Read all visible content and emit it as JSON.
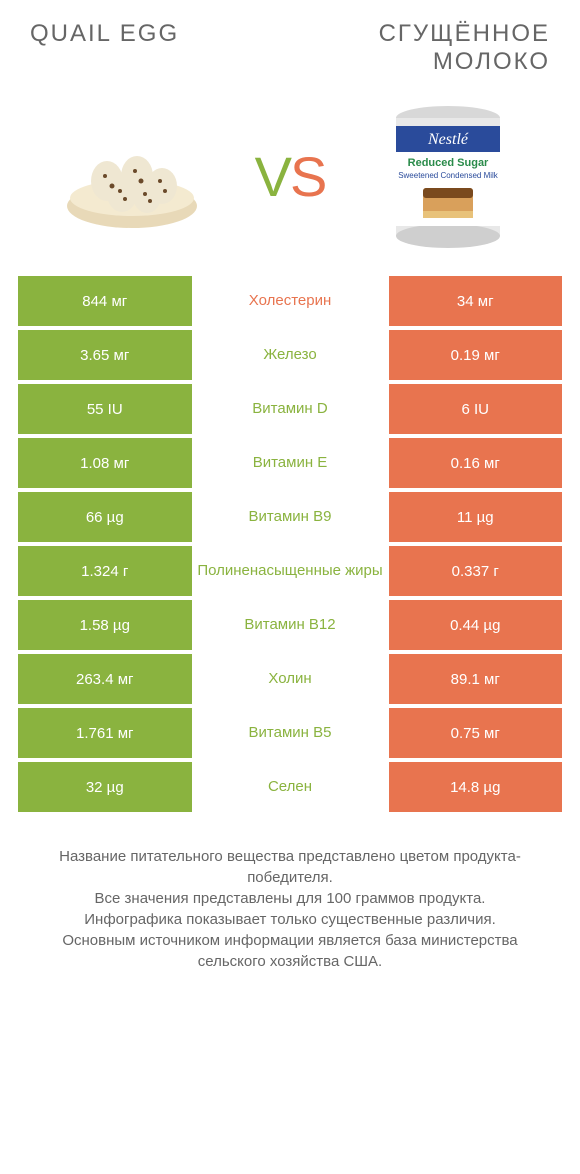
{
  "colors": {
    "green": "#8ab33f",
    "orange": "#e8744f",
    "text": "#666666",
    "white": "#ffffff"
  },
  "header": {
    "left_title": "QUAIL EGG",
    "right_title": "СГУЩЁННОЕ МОЛОКО"
  },
  "vs": {
    "v": "V",
    "s": "S"
  },
  "rows": [
    {
      "left": "844 мг",
      "label": "Холестерин",
      "right": "34 мг",
      "label_color": "orange"
    },
    {
      "left": "3.65 мг",
      "label": "Железо",
      "right": "0.19 мг",
      "label_color": "green"
    },
    {
      "left": "55 IU",
      "label": "Витамин D",
      "right": "6 IU",
      "label_color": "green"
    },
    {
      "left": "1.08 мг",
      "label": "Витамин E",
      "right": "0.16 мг",
      "label_color": "green"
    },
    {
      "left": "66 µg",
      "label": "Витамин B9",
      "right": "11 µg",
      "label_color": "green"
    },
    {
      "left": "1.324 г",
      "label": "Полиненасыщенные жиры",
      "right": "0.337 г",
      "label_color": "green"
    },
    {
      "left": "1.58 µg",
      "label": "Витамин B12",
      "right": "0.44 µg",
      "label_color": "green"
    },
    {
      "left": "263.4 мг",
      "label": "Холин",
      "right": "89.1 мг",
      "label_color": "green"
    },
    {
      "left": "1.761 мг",
      "label": "Витамин B5",
      "right": "0.75 мг",
      "label_color": "green"
    },
    {
      "left": "32 µg",
      "label": "Селен",
      "right": "14.8 µg",
      "label_color": "green"
    }
  ],
  "footer": {
    "line1": "Название питательного вещества представлено цветом продукта-победителя.",
    "line2": "Все значения представлены для 100 граммов продукта.",
    "line3": "Инфографика показывает только существенные различия.",
    "line4": "Основным источником информации является база министерства сельского хозяйства США."
  }
}
